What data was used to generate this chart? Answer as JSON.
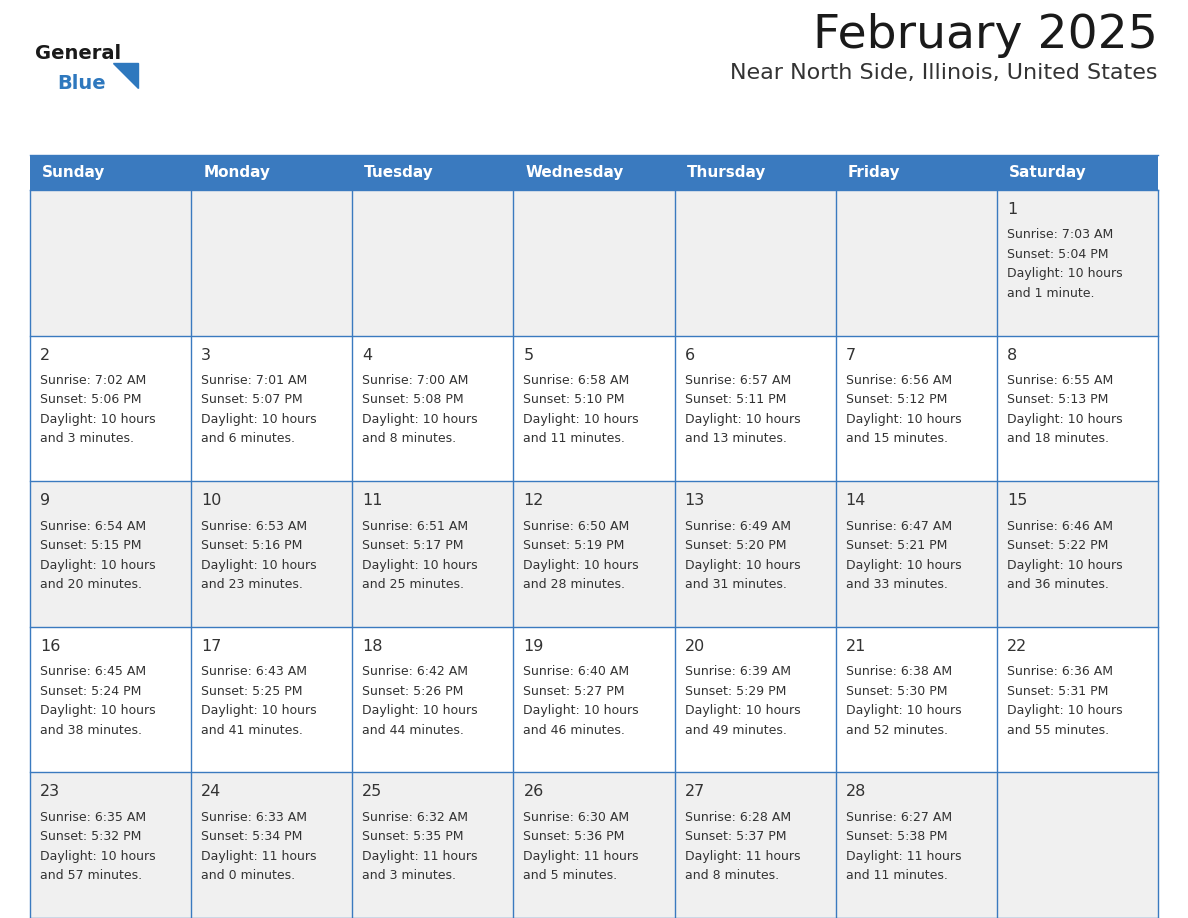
{
  "title": "February 2025",
  "subtitle": "Near North Side, Illinois, United States",
  "header_color": "#3a7abf",
  "header_text_color": "#ffffff",
  "cell_bg_odd": "#f0f0f0",
  "cell_bg_even": "#ffffff",
  "cell_border_color": "#3a7abf",
  "day_headers": [
    "Sunday",
    "Monday",
    "Tuesday",
    "Wednesday",
    "Thursday",
    "Friday",
    "Saturday"
  ],
  "title_color": "#1a1a1a",
  "subtitle_color": "#333333",
  "number_color": "#333333",
  "text_color": "#333333",
  "logo_general_color": "#1a1a1a",
  "logo_blue_color": "#2e78be",
  "days": [
    {
      "day": 1,
      "col": 6,
      "row": 0,
      "sunrise": "7:03 AM",
      "sunset": "5:04 PM",
      "dl1": "Daylight: 10 hours",
      "dl2": "and 1 minute."
    },
    {
      "day": 2,
      "col": 0,
      "row": 1,
      "sunrise": "7:02 AM",
      "sunset": "5:06 PM",
      "dl1": "Daylight: 10 hours",
      "dl2": "and 3 minutes."
    },
    {
      "day": 3,
      "col": 1,
      "row": 1,
      "sunrise": "7:01 AM",
      "sunset": "5:07 PM",
      "dl1": "Daylight: 10 hours",
      "dl2": "and 6 minutes."
    },
    {
      "day": 4,
      "col": 2,
      "row": 1,
      "sunrise": "7:00 AM",
      "sunset": "5:08 PM",
      "dl1": "Daylight: 10 hours",
      "dl2": "and 8 minutes."
    },
    {
      "day": 5,
      "col": 3,
      "row": 1,
      "sunrise": "6:58 AM",
      "sunset": "5:10 PM",
      "dl1": "Daylight: 10 hours",
      "dl2": "and 11 minutes."
    },
    {
      "day": 6,
      "col": 4,
      "row": 1,
      "sunrise": "6:57 AM",
      "sunset": "5:11 PM",
      "dl1": "Daylight: 10 hours",
      "dl2": "and 13 minutes."
    },
    {
      "day": 7,
      "col": 5,
      "row": 1,
      "sunrise": "6:56 AM",
      "sunset": "5:12 PM",
      "dl1": "Daylight: 10 hours",
      "dl2": "and 15 minutes."
    },
    {
      "day": 8,
      "col": 6,
      "row": 1,
      "sunrise": "6:55 AM",
      "sunset": "5:13 PM",
      "dl1": "Daylight: 10 hours",
      "dl2": "and 18 minutes."
    },
    {
      "day": 9,
      "col": 0,
      "row": 2,
      "sunrise": "6:54 AM",
      "sunset": "5:15 PM",
      "dl1": "Daylight: 10 hours",
      "dl2": "and 20 minutes."
    },
    {
      "day": 10,
      "col": 1,
      "row": 2,
      "sunrise": "6:53 AM",
      "sunset": "5:16 PM",
      "dl1": "Daylight: 10 hours",
      "dl2": "and 23 minutes."
    },
    {
      "day": 11,
      "col": 2,
      "row": 2,
      "sunrise": "6:51 AM",
      "sunset": "5:17 PM",
      "dl1": "Daylight: 10 hours",
      "dl2": "and 25 minutes."
    },
    {
      "day": 12,
      "col": 3,
      "row": 2,
      "sunrise": "6:50 AM",
      "sunset": "5:19 PM",
      "dl1": "Daylight: 10 hours",
      "dl2": "and 28 minutes."
    },
    {
      "day": 13,
      "col": 4,
      "row": 2,
      "sunrise": "6:49 AM",
      "sunset": "5:20 PM",
      "dl1": "Daylight: 10 hours",
      "dl2": "and 31 minutes."
    },
    {
      "day": 14,
      "col": 5,
      "row": 2,
      "sunrise": "6:47 AM",
      "sunset": "5:21 PM",
      "dl1": "Daylight: 10 hours",
      "dl2": "and 33 minutes."
    },
    {
      "day": 15,
      "col": 6,
      "row": 2,
      "sunrise": "6:46 AM",
      "sunset": "5:22 PM",
      "dl1": "Daylight: 10 hours",
      "dl2": "and 36 minutes."
    },
    {
      "day": 16,
      "col": 0,
      "row": 3,
      "sunrise": "6:45 AM",
      "sunset": "5:24 PM",
      "dl1": "Daylight: 10 hours",
      "dl2": "and 38 minutes."
    },
    {
      "day": 17,
      "col": 1,
      "row": 3,
      "sunrise": "6:43 AM",
      "sunset": "5:25 PM",
      "dl1": "Daylight: 10 hours",
      "dl2": "and 41 minutes."
    },
    {
      "day": 18,
      "col": 2,
      "row": 3,
      "sunrise": "6:42 AM",
      "sunset": "5:26 PM",
      "dl1": "Daylight: 10 hours",
      "dl2": "and 44 minutes."
    },
    {
      "day": 19,
      "col": 3,
      "row": 3,
      "sunrise": "6:40 AM",
      "sunset": "5:27 PM",
      "dl1": "Daylight: 10 hours",
      "dl2": "and 46 minutes."
    },
    {
      "day": 20,
      "col": 4,
      "row": 3,
      "sunrise": "6:39 AM",
      "sunset": "5:29 PM",
      "dl1": "Daylight: 10 hours",
      "dl2": "and 49 minutes."
    },
    {
      "day": 21,
      "col": 5,
      "row": 3,
      "sunrise": "6:38 AM",
      "sunset": "5:30 PM",
      "dl1": "Daylight: 10 hours",
      "dl2": "and 52 minutes."
    },
    {
      "day": 22,
      "col": 6,
      "row": 3,
      "sunrise": "6:36 AM",
      "sunset": "5:31 PM",
      "dl1": "Daylight: 10 hours",
      "dl2": "and 55 minutes."
    },
    {
      "day": 23,
      "col": 0,
      "row": 4,
      "sunrise": "6:35 AM",
      "sunset": "5:32 PM",
      "dl1": "Daylight: 10 hours",
      "dl2": "and 57 minutes."
    },
    {
      "day": 24,
      "col": 1,
      "row": 4,
      "sunrise": "6:33 AM",
      "sunset": "5:34 PM",
      "dl1": "Daylight: 11 hours",
      "dl2": "and 0 minutes."
    },
    {
      "day": 25,
      "col": 2,
      "row": 4,
      "sunrise": "6:32 AM",
      "sunset": "5:35 PM",
      "dl1": "Daylight: 11 hours",
      "dl2": "and 3 minutes."
    },
    {
      "day": 26,
      "col": 3,
      "row": 4,
      "sunrise": "6:30 AM",
      "sunset": "5:36 PM",
      "dl1": "Daylight: 11 hours",
      "dl2": "and 5 minutes."
    },
    {
      "day": 27,
      "col": 4,
      "row": 4,
      "sunrise": "6:28 AM",
      "sunset": "5:37 PM",
      "dl1": "Daylight: 11 hours",
      "dl2": "and 8 minutes."
    },
    {
      "day": 28,
      "col": 5,
      "row": 4,
      "sunrise": "6:27 AM",
      "sunset": "5:38 PM",
      "dl1": "Daylight: 11 hours",
      "dl2": "and 11 minutes."
    }
  ],
  "num_rows": 5,
  "num_cols": 7
}
